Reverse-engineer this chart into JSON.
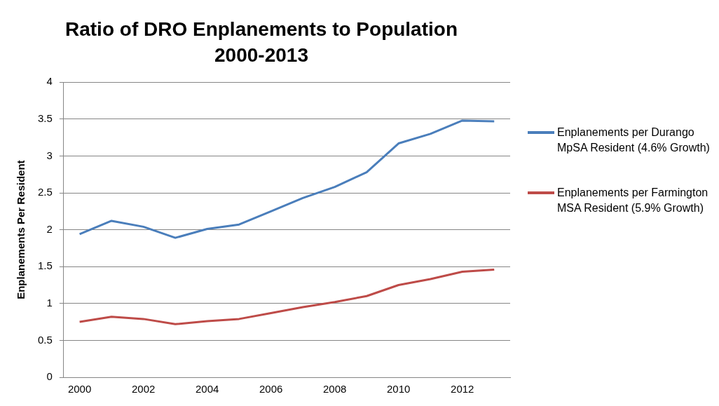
{
  "chart_data": {
    "type": "line",
    "title": "Ratio of DRO Enplanements to Population",
    "subtitle": "2000-2013",
    "ylabel": "Enplanements Per Resident",
    "categories": [
      "2000",
      null,
      "2002",
      null,
      "2004",
      null,
      "2006",
      null,
      "2008",
      null,
      "2010",
      null,
      "2012",
      null
    ],
    "series": [
      {
        "name": "Enplanements per Durango MpSA Resident (4.6% Growth)",
        "color": "#4a7ebb",
        "values": [
          1.94,
          2.12,
          2.04,
          1.89,
          2.01,
          2.07,
          2.25,
          2.43,
          2.58,
          2.78,
          3.17,
          3.3,
          3.48,
          3.47
        ]
      },
      {
        "name": "Enplanements per Farmington MSA Resident (5.9% Growth)",
        "color": "#be4b48",
        "values": [
          0.75,
          0.82,
          0.79,
          0.72,
          0.76,
          0.79,
          0.87,
          0.95,
          1.02,
          1.1,
          1.25,
          1.33,
          1.43,
          1.46
        ]
      }
    ],
    "ylim": [
      0,
      4
    ],
    "yticks": [
      0,
      0.5,
      1,
      1.5,
      2,
      2.5,
      3,
      3.5,
      4
    ],
    "grid": "y",
    "legend": "right",
    "marker": "none",
    "line_style": "solid"
  }
}
